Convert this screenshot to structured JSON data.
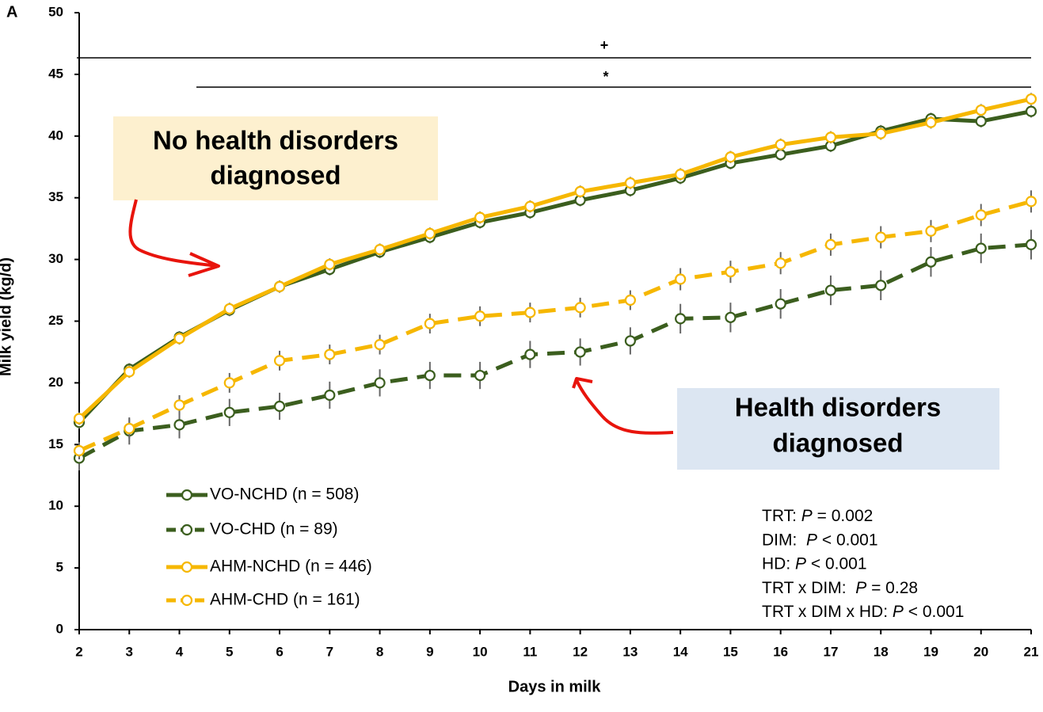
{
  "chart_data": {
    "type": "line",
    "panel_label": "A",
    "x_label": "Days in milk",
    "y_label": "Milk yield (kg/d)",
    "x": [
      2,
      3,
      4,
      5,
      6,
      7,
      8,
      9,
      10,
      11,
      12,
      13,
      14,
      15,
      16,
      17,
      18,
      19,
      20,
      21
    ],
    "xlim": [
      2,
      21
    ],
    "xticks": [
      2,
      3,
      4,
      5,
      6,
      7,
      8,
      9,
      10,
      11,
      12,
      13,
      14,
      15,
      16,
      17,
      18,
      19,
      20,
      21
    ],
    "ylim": [
      0,
      50
    ],
    "yticks": [
      0,
      5,
      10,
      15,
      20,
      25,
      30,
      35,
      40,
      45,
      50
    ],
    "series": [
      {
        "name": "VO-NCHD (n = 508)",
        "color": "#3b5e1e",
        "dashed": false,
        "values": [
          16.8,
          21.1,
          23.7,
          25.9,
          27.8,
          29.2,
          30.6,
          31.8,
          33.0,
          33.8,
          34.8,
          35.6,
          36.6,
          37.8,
          38.5,
          39.2,
          40.4,
          41.4,
          41.2,
          42.0
        ],
        "errors": [
          0.5,
          0.5,
          0.5,
          0.5,
          0.5,
          0.5,
          0.5,
          0.5,
          0.5,
          0.5,
          0.5,
          0.5,
          0.5,
          0.5,
          0.5,
          0.5,
          0.5,
          0.5,
          0.5,
          0.5
        ]
      },
      {
        "name": "VO-CHD (n = 89)",
        "color": "#3b5e1e",
        "dashed": true,
        "values": [
          13.9,
          16.1,
          16.6,
          17.6,
          18.1,
          19.0,
          20.0,
          20.6,
          20.6,
          22.3,
          22.5,
          23.4,
          25.2,
          25.3,
          26.4,
          27.5,
          27.9,
          29.8,
          30.9,
          31.2
        ],
        "errors": [
          1.0,
          1.1,
          1.1,
          1.1,
          1.1,
          1.1,
          1.1,
          1.1,
          1.1,
          1.1,
          1.1,
          1.1,
          1.2,
          1.2,
          1.2,
          1.2,
          1.2,
          1.2,
          1.2,
          1.2
        ]
      },
      {
        "name": "AHM-NCHD (n = 446)",
        "color": "#f6b700",
        "dashed": false,
        "values": [
          17.1,
          20.9,
          23.6,
          26.0,
          27.8,
          29.6,
          30.8,
          32.1,
          33.4,
          34.3,
          35.5,
          36.2,
          36.9,
          38.3,
          39.3,
          39.9,
          40.2,
          41.1,
          42.1,
          43.0
        ],
        "errors": [
          0.5,
          0.5,
          0.5,
          0.5,
          0.5,
          0.5,
          0.5,
          0.5,
          0.5,
          0.5,
          0.5,
          0.5,
          0.5,
          0.5,
          0.5,
          0.5,
          0.5,
          0.5,
          0.5,
          0.5
        ]
      },
      {
        "name": "AHM-CHD (n = 161)",
        "color": "#f6b700",
        "dashed": true,
        "values": [
          14.5,
          16.3,
          18.2,
          20.0,
          21.8,
          22.3,
          23.1,
          24.8,
          25.4,
          25.7,
          26.1,
          26.7,
          28.4,
          29.0,
          29.7,
          31.2,
          31.8,
          32.3,
          33.6,
          34.7
        ],
        "errors": [
          0.7,
          0.8,
          0.8,
          0.8,
          0.8,
          0.8,
          0.8,
          0.8,
          0.8,
          0.8,
          0.8,
          0.8,
          0.9,
          0.9,
          0.9,
          0.9,
          0.9,
          0.9,
          0.9,
          0.9
        ]
      }
    ],
    "significance": [
      "+",
      "*"
    ],
    "callouts": [
      [
        "No health disorders",
        "diagnosed"
      ],
      [
        "Health disorders",
        "diagnosed"
      ]
    ],
    "stats": [
      [
        "TRT: ",
        "P",
        " = 0.002"
      ],
      [
        "DIM:  ",
        "P",
        " < 0.001"
      ],
      [
        "HD: ",
        "P",
        " < 0.001"
      ],
      [
        "TRT x DIM:  ",
        "P",
        " = 0.28"
      ],
      [
        "TRT x DIM x HD: ",
        "P",
        " < 0.001"
      ]
    ]
  }
}
